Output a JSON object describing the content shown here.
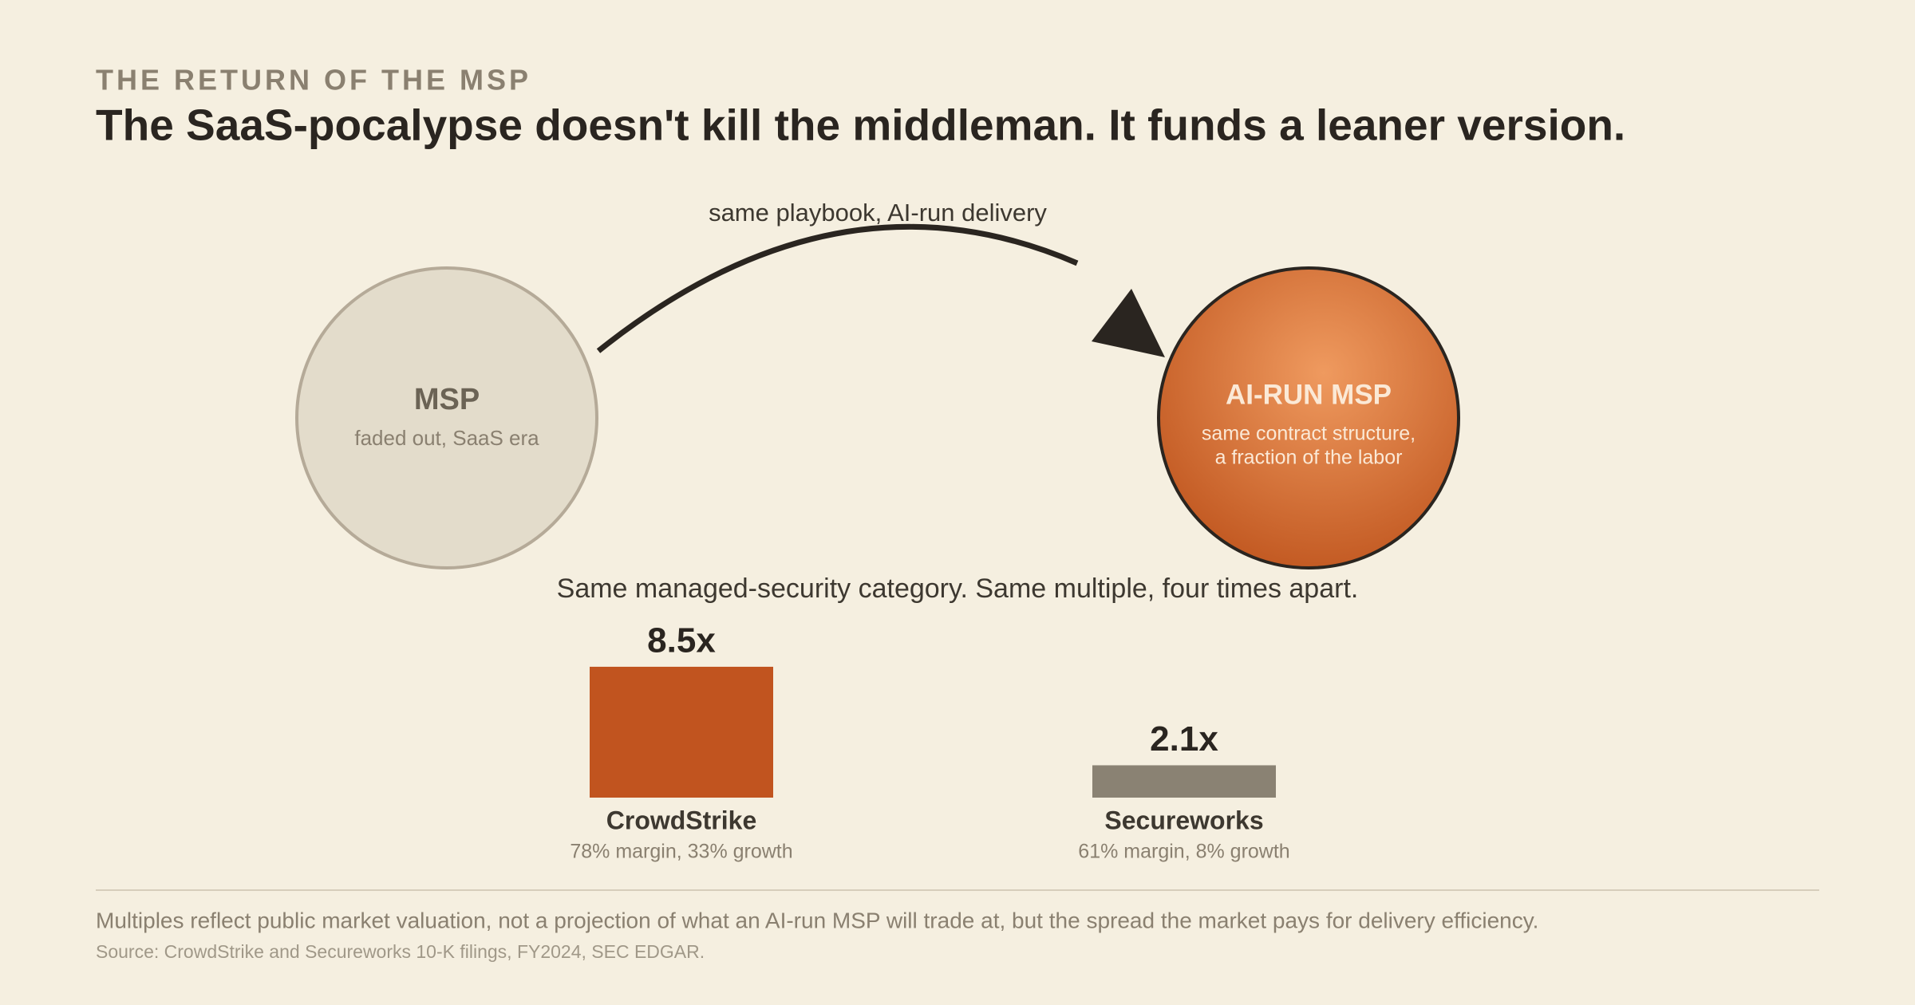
{
  "header": {
    "kicker": "THE RETURN OF THE MSP",
    "title": "The SaaS-pocalypse doesn't kill the middleman. It funds a leaner version."
  },
  "diagram": {
    "arrow_label": "same playbook, AI-run delivery",
    "from": {
      "label": "MSP",
      "sublabel": "faded out, SaaS era"
    },
    "to": {
      "label": "AI-RUN MSP",
      "sublabel_lines": [
        "same contract structure,",
        "a fraction of the labor"
      ]
    }
  },
  "chart_data": {
    "type": "bar",
    "title": "Same managed-security category. Same multiple, four times apart.",
    "categories": [
      "CrowdStrike",
      "Secureworks"
    ],
    "notes": [
      "78% margin, 33% growth",
      "61% margin, 8% growth"
    ],
    "values": [
      8.5,
      2.1
    ],
    "value_labels": [
      "8.5x",
      "2.1x"
    ],
    "colors": [
      "#c1541f",
      "#8a8273"
    ]
  },
  "footer": {
    "note": "Multiples reflect public market valuation, not a projection of what an AI-run MSP will trade at, but the spread the market pays for delivery efficiency.",
    "source": "Source: CrowdStrike and Secureworks 10-K filings, FY2024, SEC EDGAR."
  }
}
